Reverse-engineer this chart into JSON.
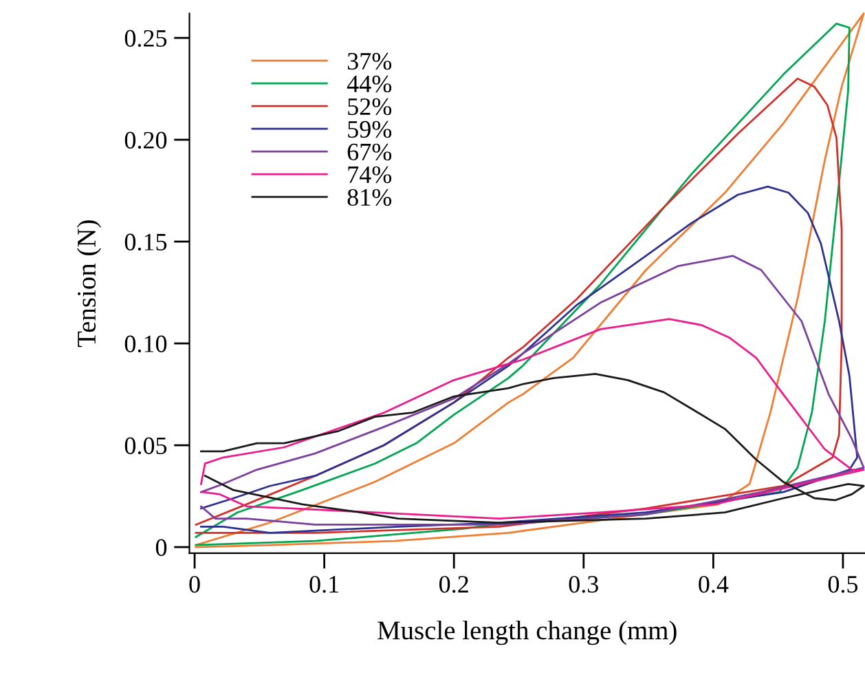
{
  "chart_data": {
    "type": "line",
    "xlabel": "Muscle length change (mm)",
    "ylabel": "Tension (N)",
    "xlim": [
      -0.004,
      0.517
    ],
    "ylim": [
      -0.003,
      0.262
    ],
    "xticks": [
      0,
      0.1,
      0.2,
      0.3,
      0.4,
      0.5
    ],
    "yticks": [
      0,
      0.05,
      {
        "value": 0.1,
        "label": "0.10"
      },
      {
        "value": 0.15,
        "label": "0.15"
      },
      {
        "value": 0.2,
        "label": "0.20"
      },
      0.25
    ],
    "grid": false,
    "legend": "top left",
    "marker": "none",
    "line_style": "solid",
    "series": [
      {
        "name": "37%",
        "color": "#f07d32",
        "x": [
          0.001,
          0.058,
          0.139,
          0.2,
          0.242,
          0.253,
          0.292,
          0.348,
          0.409,
          0.454,
          0.516,
          0.499,
          0.486,
          0.465,
          0.444,
          0.428,
          0.404,
          0.242,
          0.154,
          0.058,
          0.001
        ],
        "values": [
          0.001,
          0.012,
          0.032,
          0.051,
          0.071,
          0.075,
          0.093,
          0.136,
          0.174,
          0.208,
          0.262,
          0.226,
          0.19,
          0.122,
          0.066,
          0.031,
          0.021,
          0.007,
          0.003,
          0.001,
          0.0
        ]
      },
      {
        "name": "44%",
        "color": "#00a651",
        "x": [
          0.001,
          0.033,
          0.083,
          0.139,
          0.171,
          0.2,
          0.242,
          0.253,
          0.313,
          0.383,
          0.454,
          0.495,
          0.505,
          0.504,
          0.497,
          0.486,
          0.476,
          0.465,
          0.451,
          0.348,
          0.242,
          0.207,
          0.093,
          0.001
        ],
        "values": [
          0.005,
          0.017,
          0.028,
          0.041,
          0.051,
          0.065,
          0.083,
          0.089,
          0.129,
          0.183,
          0.232,
          0.257,
          0.255,
          0.224,
          0.179,
          0.111,
          0.066,
          0.039,
          0.027,
          0.016,
          0.012,
          0.009,
          0.003,
          0.001
        ]
      },
      {
        "name": "52%",
        "color": "#d2302a",
        "x": [
          0.001,
          0.04,
          0.093,
          0.146,
          0.2,
          0.242,
          0.253,
          0.295,
          0.359,
          0.419,
          0.465,
          0.478,
          0.488,
          0.495,
          0.499,
          0.499,
          0.497,
          0.492,
          0.454,
          0.348,
          0.235,
          0.093,
          0.001
        ],
        "values": [
          0.011,
          0.021,
          0.035,
          0.05,
          0.071,
          0.093,
          0.098,
          0.122,
          0.165,
          0.203,
          0.23,
          0.226,
          0.217,
          0.201,
          0.156,
          0.1,
          0.055,
          0.044,
          0.03,
          0.019,
          0.01,
          0.007,
          0.007
        ]
      },
      {
        "name": "59%",
        "color": "#2e3192",
        "x": [
          0.005,
          0.03,
          0.058,
          0.093,
          0.146,
          0.2,
          0.242,
          0.253,
          0.295,
          0.348,
          0.383,
          0.419,
          0.442,
          0.458,
          0.473,
          0.483,
          0.497,
          0.505,
          0.511,
          0.505,
          0.454,
          0.348,
          0.235,
          0.157,
          0.058,
          0.022,
          0.005
        ],
        "values": [
          0.019,
          0.024,
          0.03,
          0.035,
          0.05,
          0.071,
          0.089,
          0.095,
          0.119,
          0.143,
          0.159,
          0.173,
          0.177,
          0.174,
          0.164,
          0.149,
          0.111,
          0.084,
          0.044,
          0.038,
          0.027,
          0.017,
          0.012,
          0.01,
          0.007,
          0.01,
          0.01
        ]
      },
      {
        "name": "67%",
        "color": "#7b3f9e",
        "x": [
          0.005,
          0.022,
          0.048,
          0.093,
          0.146,
          0.2,
          0.242,
          0.253,
          0.313,
          0.373,
          0.415,
          0.437,
          0.468,
          0.489,
          0.507,
          0.516,
          0.437,
          0.348,
          0.235,
          0.093,
          0.04,
          0.016,
          0.005
        ],
        "values": [
          0.027,
          0.031,
          0.038,
          0.046,
          0.059,
          0.073,
          0.09,
          0.095,
          0.12,
          0.138,
          0.143,
          0.136,
          0.111,
          0.075,
          0.053,
          0.039,
          0.027,
          0.016,
          0.011,
          0.011,
          0.014,
          0.014,
          0.02
        ]
      },
      {
        "name": "74%",
        "color": "#ec1c8c",
        "x": [
          0.005,
          0.008,
          0.022,
          0.069,
          0.146,
          0.2,
          0.242,
          0.253,
          0.313,
          0.366,
          0.391,
          0.412,
          0.433,
          0.454,
          0.486,
          0.507,
          0.516,
          0.401,
          0.313,
          0.235,
          0.075,
          0.04,
          0.019,
          0.006
        ],
        "values": [
          0.031,
          0.041,
          0.044,
          0.049,
          0.066,
          0.082,
          0.09,
          0.092,
          0.107,
          0.112,
          0.109,
          0.103,
          0.093,
          0.075,
          0.048,
          0.038,
          0.038,
          0.021,
          0.017,
          0.014,
          0.019,
          0.02,
          0.026,
          0.027
        ]
      },
      {
        "name": "81%",
        "color": "#1a1a1a",
        "x": [
          0.005,
          0.022,
          0.048,
          0.069,
          0.111,
          0.139,
          0.168,
          0.2,
          0.242,
          0.253,
          0.277,
          0.309,
          0.334,
          0.362,
          0.383,
          0.409,
          0.433,
          0.454,
          0.478,
          0.494,
          0.507,
          0.516,
          0.504,
          0.454,
          0.409,
          0.348,
          0.235,
          0.157,
          0.128,
          0.083,
          0.03,
          0.008
        ],
        "values": [
          0.047,
          0.047,
          0.051,
          0.051,
          0.057,
          0.064,
          0.066,
          0.074,
          0.078,
          0.08,
          0.083,
          0.085,
          0.082,
          0.076,
          0.068,
          0.058,
          0.043,
          0.032,
          0.024,
          0.023,
          0.026,
          0.03,
          0.031,
          0.024,
          0.017,
          0.014,
          0.012,
          0.014,
          0.017,
          0.021,
          0.028,
          0.035
        ]
      }
    ]
  }
}
